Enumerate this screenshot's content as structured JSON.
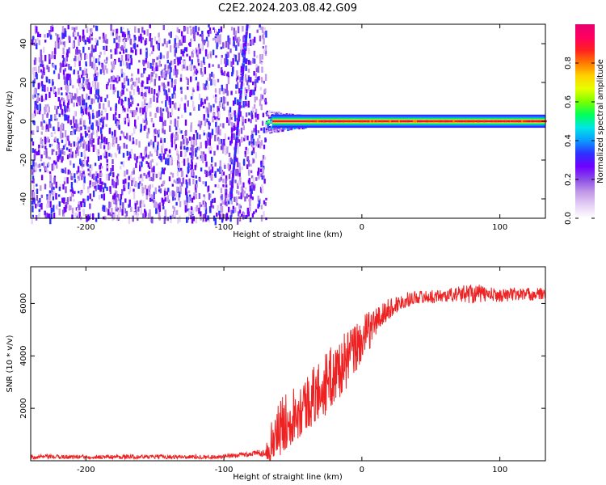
{
  "figure_title": "C2E2.2024.203.08.42.G09",
  "chart_data": [
    {
      "type": "heatmap",
      "title": "",
      "xlabel": "Height of straight line (km)",
      "ylabel": "Frequency (Hz)",
      "xlim": [
        -240,
        133
      ],
      "ylim": [
        -50,
        50
      ],
      "x_ticks": [
        -200,
        -100,
        0,
        100
      ],
      "x_tick_labels": [
        "-200",
        "-100",
        "0",
        "100"
      ],
      "y_ticks": [
        -40,
        -20,
        0,
        20,
        40
      ],
      "y_tick_labels": [
        "-40",
        "-20",
        "0",
        "20",
        "40"
      ],
      "colorbar": {
        "label": "Normalized spectral amplitude",
        "range": [
          0,
          1
        ],
        "ticks": [
          0,
          0.2,
          0.4,
          0.6,
          0.8
        ],
        "tick_labels": [
          "0.0",
          "0.2",
          "0.4",
          "0.6",
          "0.8"
        ],
        "colors": [
          "#ffffff",
          "#e6d2f5",
          "#c39be8",
          "#8c4ee6",
          "#6f00ff",
          "#2d30ff",
          "#0a9bff",
          "#00e6e6",
          "#00ff5a",
          "#78ff00",
          "#e6ff00",
          "#ffd200",
          "#ff7a00",
          "#ff2020",
          "#ff0060",
          "#e6006e"
        ]
      },
      "regions": [
        {
          "name": "noise",
          "x_range": [
            -240,
            -70
          ],
          "freq_range": [
            -50,
            50
          ],
          "typical_amplitude": 0.15
        },
        {
          "name": "diagonal streak",
          "x_range": [
            -95,
            -83
          ],
          "freq_range": [
            -40,
            50
          ],
          "typical_amplitude": 0.3
        },
        {
          "name": "transition",
          "x_range": [
            -70,
            -40
          ],
          "freq_range": [
            -6,
            6
          ],
          "typical_amplitude": 0.5
        },
        {
          "name": "carrier",
          "x_range": [
            -40,
            133
          ],
          "freq_range": [
            -1,
            1
          ],
          "typical_amplitude": 0.95
        }
      ],
      "grid": false
    },
    {
      "type": "line",
      "title": "",
      "xlabel": "Height of straight line (km)",
      "ylabel": "SNR (10 * v/v)",
      "xlim": [
        -240,
        133
      ],
      "ylim": [
        0,
        7400
      ],
      "x_ticks": [
        -200,
        -100,
        0,
        100
      ],
      "x_tick_labels": [
        "-200",
        "-100",
        "0",
        "100"
      ],
      "y_ticks": [
        2000,
        4000,
        6000
      ],
      "y_tick_labels": [
        "2000",
        "4000",
        "6000"
      ],
      "color": "#ee2222",
      "grid": false,
      "x": [
        -240,
        -200,
        -150,
        -100,
        -75,
        -70,
        -65,
        -60,
        -50,
        -40,
        -30,
        -20,
        -10,
        0,
        10,
        20,
        30,
        40,
        50,
        60,
        70,
        80,
        90,
        100,
        110,
        120,
        133
      ],
      "y": [
        150,
        150,
        150,
        150,
        300,
        300,
        700,
        1200,
        1800,
        2200,
        2700,
        3300,
        3900,
        4600,
        5300,
        5800,
        6100,
        6250,
        6250,
        6300,
        6350,
        6400,
        6350,
        6300,
        6350,
        6350,
        6350
      ],
      "noise_amplitude": [
        80,
        80,
        80,
        80,
        120,
        150,
        900,
        1100,
        1100,
        1100,
        1200,
        1200,
        1100,
        900,
        600,
        400,
        300,
        250,
        250,
        250,
        300,
        400,
        300,
        250,
        250,
        250,
        250
      ]
    }
  ]
}
